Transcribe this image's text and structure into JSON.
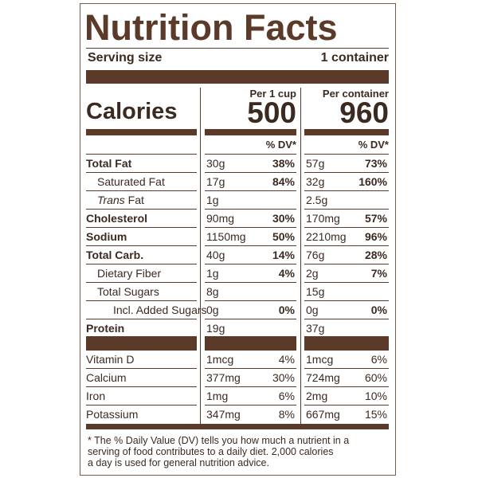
{
  "title": "Nutrition Facts",
  "serving": {
    "label": "Serving size",
    "value": "1 container"
  },
  "calories_label": "Calories",
  "columns": [
    {
      "header": "Per 1 cup",
      "calories": 500
    },
    {
      "header": "Per container",
      "calories": 960
    }
  ],
  "dv_header": "% DV*",
  "nutrients": [
    {
      "name": "Total Fat",
      "bold": true,
      "indent": 0,
      "values": [
        [
          "30g",
          "38%"
        ],
        [
          "57g",
          "73%"
        ]
      ]
    },
    {
      "name": "Saturated Fat",
      "bold": false,
      "indent": 1,
      "values": [
        [
          "17g",
          "84%"
        ],
        [
          "32g",
          "160%"
        ]
      ]
    },
    {
      "italic_prefix": "Trans",
      "name": "Fat",
      "bold": false,
      "indent": 1,
      "values": [
        [
          "1g"
        ],
        [
          "2.5g"
        ]
      ]
    },
    {
      "name": "Cholesterol",
      "bold": true,
      "indent": 0,
      "values": [
        [
          "90mg",
          "30%"
        ],
        [
          "170mg",
          "57%"
        ]
      ]
    },
    {
      "name": "Sodium",
      "bold": true,
      "indent": 0,
      "values": [
        [
          "1150mg",
          "50%"
        ],
        [
          "2210mg",
          "96%"
        ]
      ]
    },
    {
      "name": "Total Carb.",
      "bold": true,
      "indent": 0,
      "values": [
        [
          "40g",
          "14%"
        ],
        [
          "76g",
          "28%"
        ]
      ]
    },
    {
      "name": "Dietary Fiber",
      "bold": false,
      "indent": 1,
      "values": [
        [
          "1g",
          "4%"
        ],
        [
          "2g",
          "7%"
        ]
      ]
    },
    {
      "name": "Total Sugars",
      "bold": false,
      "indent": 1,
      "values": [
        [
          "8g"
        ],
        [
          "15g"
        ]
      ]
    },
    {
      "name": "Incl. Added Sugars",
      "bold": false,
      "indent": 2,
      "values": [
        [
          "0g",
          "0%"
        ],
        [
          "0g",
          "0%"
        ]
      ]
    },
    {
      "name": "Protein",
      "bold": true,
      "indent": 0,
      "values": [
        [
          "19g"
        ],
        [
          "37g"
        ]
      ]
    }
  ],
  "vitamins": [
    {
      "name": "Vitamin D",
      "values": [
        [
          "1mcg",
          "4%"
        ],
        [
          "1mcg",
          "6%"
        ]
      ]
    },
    {
      "name": "Calcium",
      "values": [
        [
          "377mg",
          "30%"
        ],
        [
          "724mg",
          "60%"
        ]
      ]
    },
    {
      "name": "Iron",
      "values": [
        [
          "1mg",
          "6%"
        ],
        [
          "2mg",
          "10%"
        ]
      ]
    },
    {
      "name": "Potassium",
      "values": [
        [
          "347mg",
          "8%"
        ],
        [
          "667mg",
          "15%"
        ]
      ]
    }
  ],
  "footnote": [
    "* The % Daily Value (DV) tells you how much a nutrient in a",
    "serving of food contributes to a daily diet. 2,000 calories",
    "a day is used for general  nutrition advice."
  ]
}
